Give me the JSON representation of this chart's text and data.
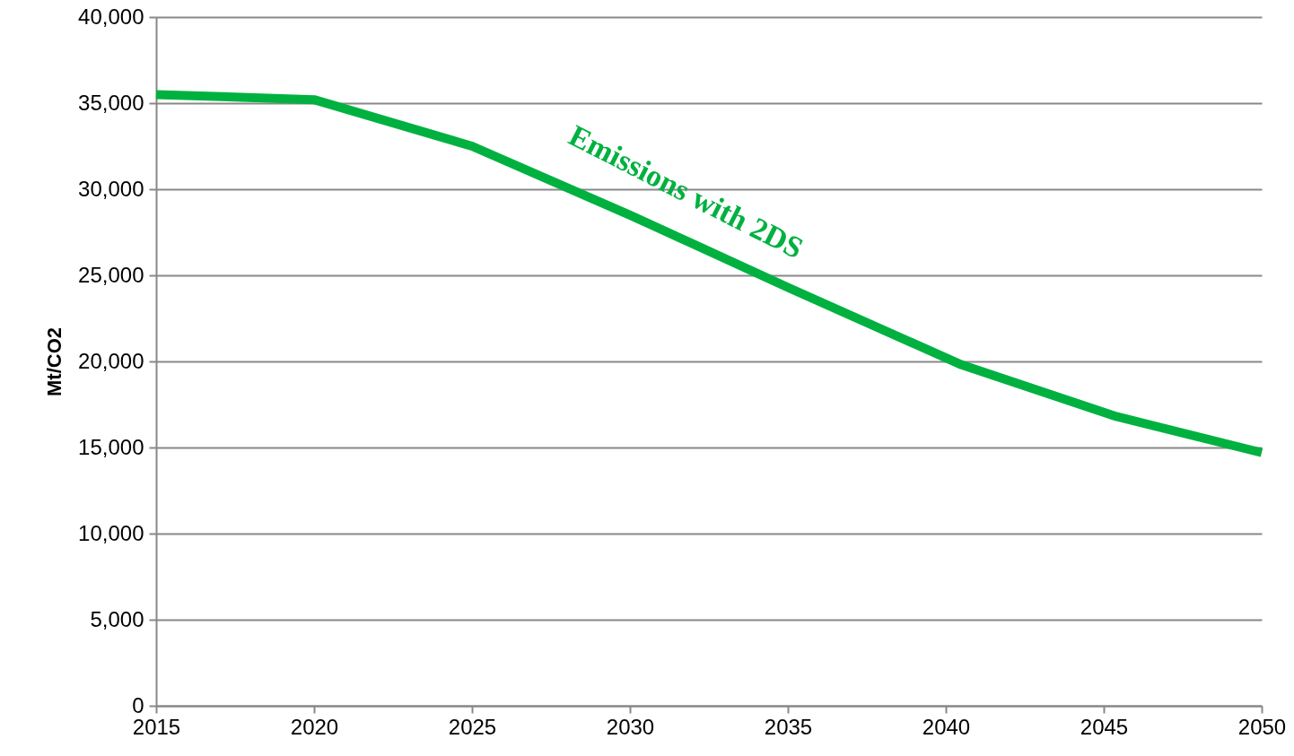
{
  "chart_data": {
    "type": "line",
    "ylabel": "Mt/CO2",
    "x": [
      2015,
      2020,
      2025,
      2030,
      2035,
      2040.5,
      2045.4,
      2050
    ],
    "series": [
      {
        "color": "#00b140",
        "values": [
          35500,
          35200,
          32500,
          28500,
          24300,
          19800,
          16800,
          14700
        ]
      }
    ],
    "xlim": [
      2015,
      2050
    ],
    "xticks": [
      2015,
      2020,
      2025,
      2030,
      2035,
      2040,
      2045,
      2050
    ],
    "ylim": [
      0,
      40000
    ],
    "yticks": [
      0,
      {
        "value": 5000,
        "label": "5,000"
      },
      {
        "value": 10000,
        "label": "10,000"
      },
      {
        "value": 15000,
        "label": "15,000"
      },
      {
        "value": 20000,
        "label": "20,000"
      },
      {
        "value": 25000,
        "label": "25,000"
      },
      {
        "value": 30000,
        "label": "30,000"
      },
      {
        "value": 35000,
        "label": "35,000"
      },
      {
        "value": 40000,
        "label": "40,000"
      }
    ],
    "grid": "y",
    "marker": "none",
    "line_style": "solid",
    "annotations": [
      "Emissions with 2DS"
    ]
  }
}
